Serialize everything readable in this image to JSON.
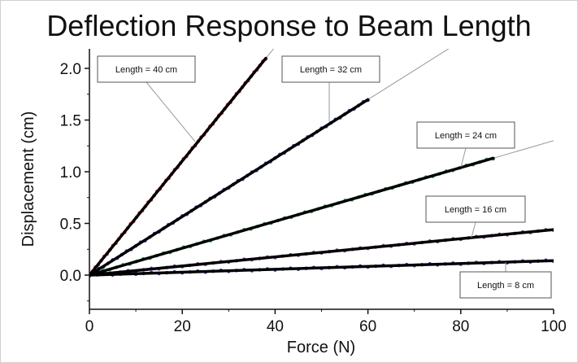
{
  "chart_data": {
    "type": "scatter",
    "title": "Deflection Response to Beam Length",
    "xlabel": "Force (N)",
    "ylabel": "Displacement (cm)",
    "xlim": [
      0,
      100
    ],
    "ylim": [
      -0.3,
      2.2
    ],
    "x_ticks": [
      "0",
      "20",
      "40",
      "60",
      "80",
      "100"
    ],
    "y_ticks": [
      "0.0",
      "0.5",
      "1.0",
      "1.5",
      "2.0"
    ],
    "grid": false,
    "series": [
      {
        "name": "Length = 40 cm",
        "color": "#e02020",
        "x": [
          0,
          10,
          20,
          30,
          38
        ],
        "y": [
          0,
          0.55,
          1.1,
          1.65,
          2.1
        ],
        "fit_slope": 0.0552
      },
      {
        "name": "Length = 32 cm",
        "color": "#2a40b8",
        "x": [
          0,
          15,
          30,
          45,
          60
        ],
        "y": [
          0,
          0.42,
          0.85,
          1.27,
          1.7
        ],
        "fit_slope": 0.0283
      },
      {
        "name": "Length = 24 cm",
        "color": "#2aa040",
        "x": [
          0,
          20,
          40,
          60,
          87
        ],
        "y": [
          0,
          0.26,
          0.52,
          0.78,
          1.13
        ],
        "fit_slope": 0.013
      },
      {
        "name": "Length = 16 cm",
        "color": "#8a3a9a",
        "x": [
          0,
          25,
          50,
          75,
          100
        ],
        "y": [
          0,
          0.11,
          0.22,
          0.33,
          0.44
        ],
        "fit_slope": 0.0044
      },
      {
        "name": "Length = 8 cm",
        "color": "#2a40b8",
        "x": [
          0,
          25,
          50,
          75,
          100
        ],
        "y": [
          0,
          0.035,
          0.07,
          0.105,
          0.14
        ],
        "fit_slope": 0.0014
      }
    ],
    "annotations": [
      {
        "text": "Length = 40 cm",
        "series": 0
      },
      {
        "text": "Length = 32 cm",
        "series": 1
      },
      {
        "text": "Length = 24 cm",
        "series": 2
      },
      {
        "text": "Length = 16 cm",
        "series": 3
      },
      {
        "text": "Length = 8 cm",
        "series": 4
      }
    ]
  },
  "colors": {
    "fit_line": "#000000",
    "axis": "#111111",
    "leader": "#9a9a9a",
    "box_border": "#555555"
  }
}
